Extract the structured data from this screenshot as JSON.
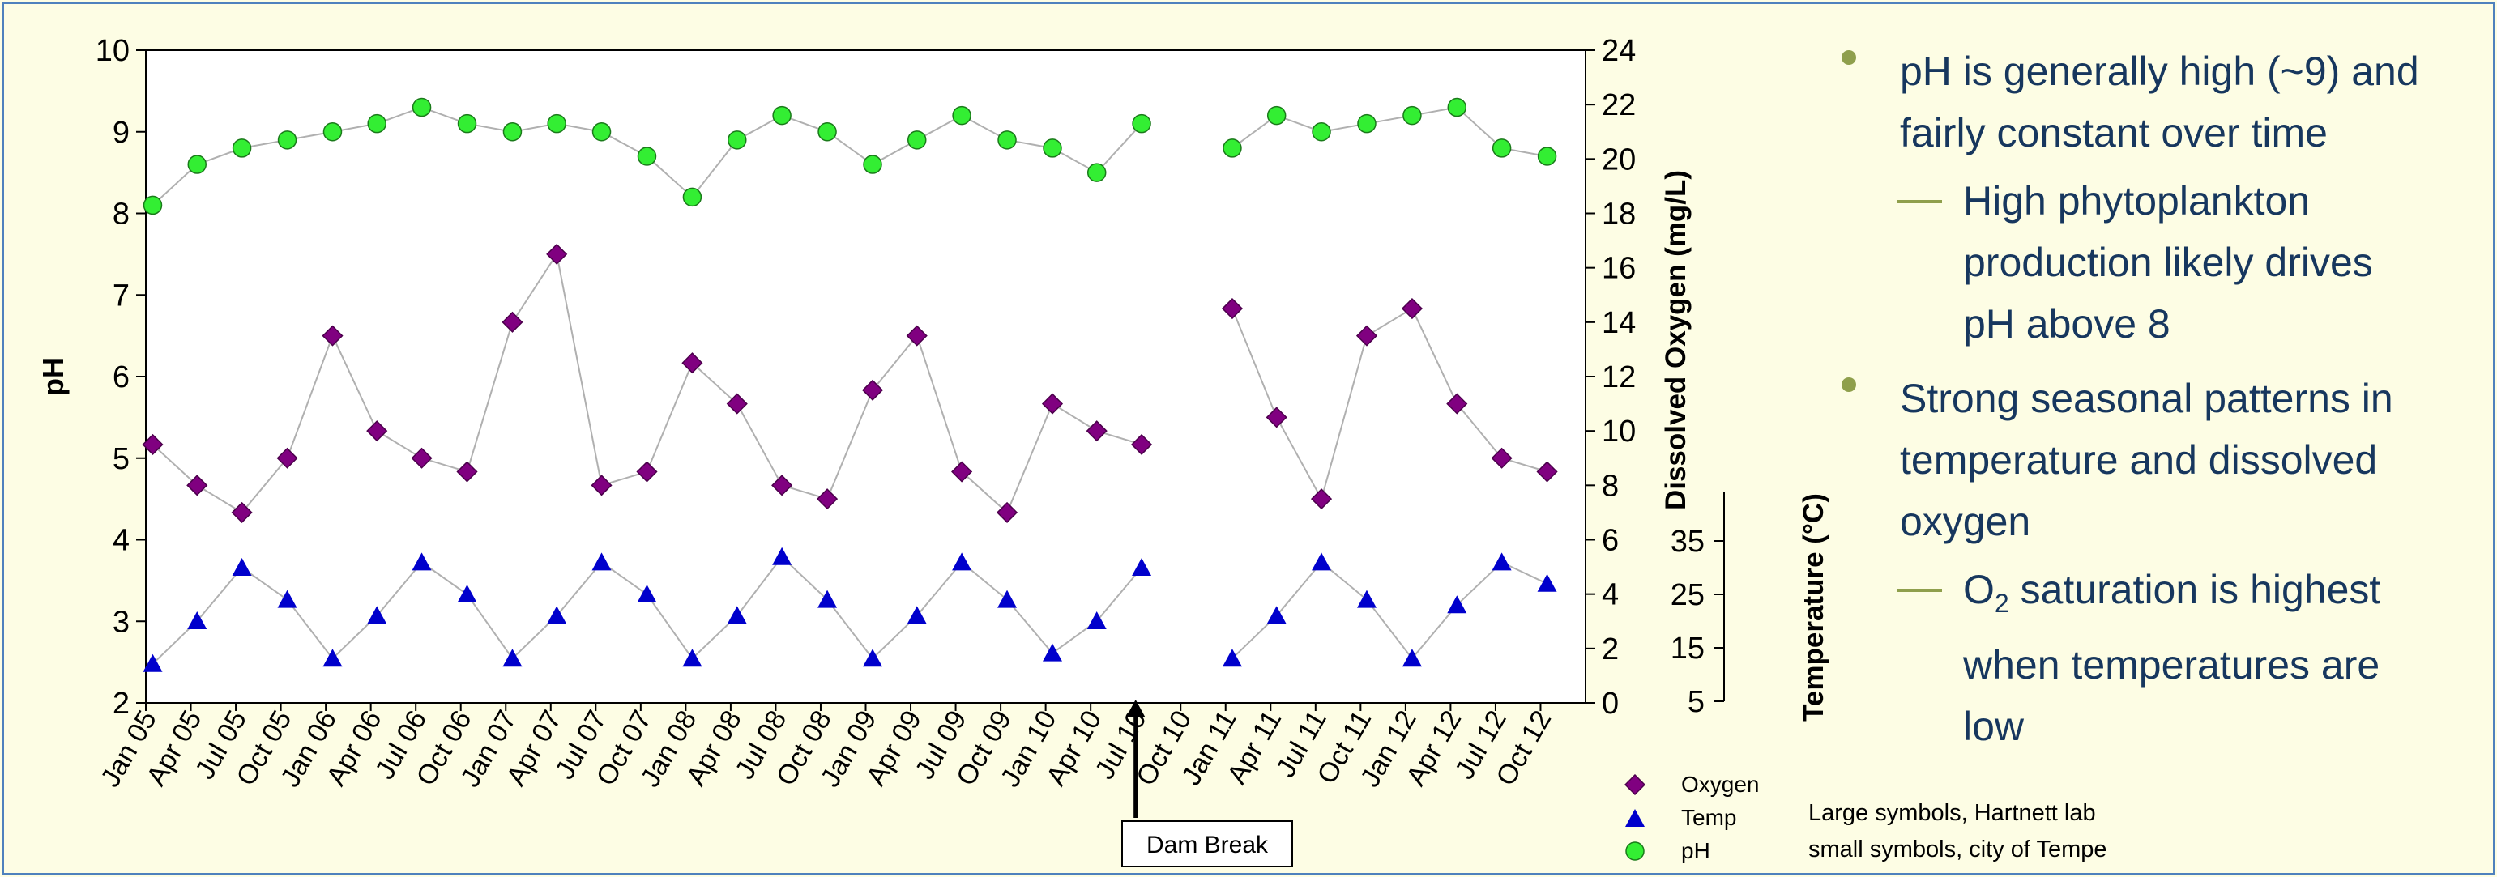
{
  "left_axis": {
    "title": "pH",
    "ticks": [
      "2",
      "3",
      "4",
      "5",
      "6",
      "7",
      "8",
      "9",
      "10"
    ]
  },
  "right_axis_oxygen": {
    "title": "Dissolved Oxygen (mg/L)",
    "ticks": [
      "0",
      "2",
      "4",
      "6",
      "8",
      "10",
      "12",
      "14",
      "16",
      "18",
      "20",
      "22",
      "24"
    ]
  },
  "right_axis_temp": {
    "title": "Temperature (°C)",
    "ticks": [
      "5",
      "15",
      "25",
      "35"
    ]
  },
  "x_ticks": [
    "Jan 05",
    "Apr 05",
    "Jul 05",
    "Oct 05",
    "Jan 06",
    "Apr 06",
    "Jul 06",
    "Oct 06",
    "Jan 07",
    "Apr 07",
    "Jul 07",
    "Oct 07",
    "Jan 08",
    "Apr 08",
    "Jul 08",
    "Oct 08",
    "Jan 09",
    "Apr 09",
    "Jul 09",
    "Oct 09",
    "Jan 10",
    "Apr 10",
    "Jul 10",
    "Oct 10",
    "Jan 11",
    "Apr 11",
    "Jul 11",
    "Oct 11",
    "Jan 12",
    "Apr 12",
    "Jul 12",
    "Oct 12"
  ],
  "annotation": {
    "label": "Dam Break",
    "at": "Jul 10"
  },
  "legend": [
    {
      "name": "Oxygen",
      "color": "#800080",
      "shape": "diamond"
    },
    {
      "name": "Temp",
      "color": "#0000cc",
      "shape": "triangle"
    },
    {
      "name": "pH",
      "color": "#33ee33",
      "shape": "circle"
    }
  ],
  "source_note": {
    "line1": "Large symbols, Hartnett lab",
    "line2": "small symbols, city of Tempe"
  },
  "bullets": [
    {
      "level": 1,
      "text_line1": "pH is generally high (~9) and",
      "text_line2": "fairly constant over time"
    },
    {
      "level": 2,
      "text_line1": "High phytoplankton",
      "text_line2": "production likely drives",
      "text_line3": "pH above 8"
    },
    {
      "level": 1,
      "text_line1": "Strong seasonal patterns in",
      "text_line2": "temperature and dissolved",
      "text_line3": "oxygen"
    },
    {
      "level": 2,
      "text_line1_pre": "O",
      "text_line1_sub": "2",
      "text_line1_post": " saturation is highest",
      "text_line2": "when temperatures are",
      "text_line3": "low"
    }
  ],
  "chart_data": {
    "type": "scatter",
    "x_range": [
      "2005-01",
      "2012-12"
    ],
    "ylim_left_pH": [
      2,
      10
    ],
    "ylim_right_oxygen": [
      0,
      24
    ],
    "temp_scale_ticks": [
      5,
      15,
      25,
      35
    ],
    "series": [
      {
        "name": "pH",
        "axis": "pH",
        "x": [
          "2005-01",
          "2005-04",
          "2005-07",
          "2005-10",
          "2006-01",
          "2006-04",
          "2006-07",
          "2006-10",
          "2007-01",
          "2007-04",
          "2007-07",
          "2007-10",
          "2008-01",
          "2008-04",
          "2008-07",
          "2008-10",
          "2009-01",
          "2009-04",
          "2009-07",
          "2009-10",
          "2010-01",
          "2010-04",
          "2010-07",
          "2011-01",
          "2011-04",
          "2011-07",
          "2011-10",
          "2012-01",
          "2012-04",
          "2012-07",
          "2012-10"
        ],
        "values": [
          8.1,
          8.6,
          8.8,
          8.9,
          9.0,
          9.1,
          9.3,
          9.1,
          9.0,
          9.1,
          9.0,
          8.7,
          8.2,
          8.9,
          9.2,
          9.0,
          8.6,
          8.9,
          9.2,
          8.9,
          8.8,
          8.5,
          9.1,
          8.8,
          9.2,
          9.0,
          9.1,
          9.2,
          9.3,
          8.8,
          8.7
        ]
      },
      {
        "name": "Oxygen",
        "axis": "oxygen",
        "x": [
          "2005-01",
          "2005-04",
          "2005-07",
          "2005-10",
          "2006-01",
          "2006-04",
          "2006-07",
          "2006-10",
          "2007-01",
          "2007-04",
          "2007-07",
          "2007-10",
          "2008-01",
          "2008-04",
          "2008-07",
          "2008-10",
          "2009-01",
          "2009-04",
          "2009-07",
          "2009-10",
          "2010-01",
          "2010-04",
          "2010-07",
          "2011-01",
          "2011-04",
          "2011-07",
          "2011-10",
          "2012-01",
          "2012-04",
          "2012-07",
          "2012-10"
        ],
        "values": [
          9.5,
          8.0,
          7.0,
          9.0,
          13.5,
          10.0,
          9.0,
          8.5,
          14.0,
          16.5,
          8.0,
          8.5,
          12.5,
          11.0,
          8.0,
          7.5,
          11.5,
          13.5,
          8.5,
          7.0,
          11.0,
          10.0,
          9.5,
          14.5,
          10.5,
          7.5,
          13.5,
          14.5,
          11.0,
          9.0,
          8.5
        ]
      },
      {
        "name": "Temp",
        "axis": "temperature",
        "x": [
          "2005-01",
          "2005-04",
          "2005-07",
          "2005-10",
          "2006-01",
          "2006-04",
          "2006-07",
          "2006-10",
          "2007-01",
          "2007-04",
          "2007-07",
          "2007-10",
          "2008-01",
          "2008-04",
          "2008-07",
          "2008-10",
          "2009-01",
          "2009-04",
          "2009-07",
          "2009-10",
          "2010-01",
          "2010-04",
          "2010-07",
          "2011-01",
          "2011-04",
          "2011-07",
          "2011-10",
          "2012-01",
          "2012-04",
          "2012-07",
          "2012-10"
        ],
        "values": [
          12,
          20,
          30,
          24,
          13,
          21,
          31,
          25,
          13,
          21,
          31,
          25,
          13,
          21,
          32,
          24,
          13,
          21,
          31,
          24,
          14,
          20,
          30,
          13,
          21,
          31,
          24,
          13,
          23,
          31,
          27
        ]
      }
    ]
  }
}
